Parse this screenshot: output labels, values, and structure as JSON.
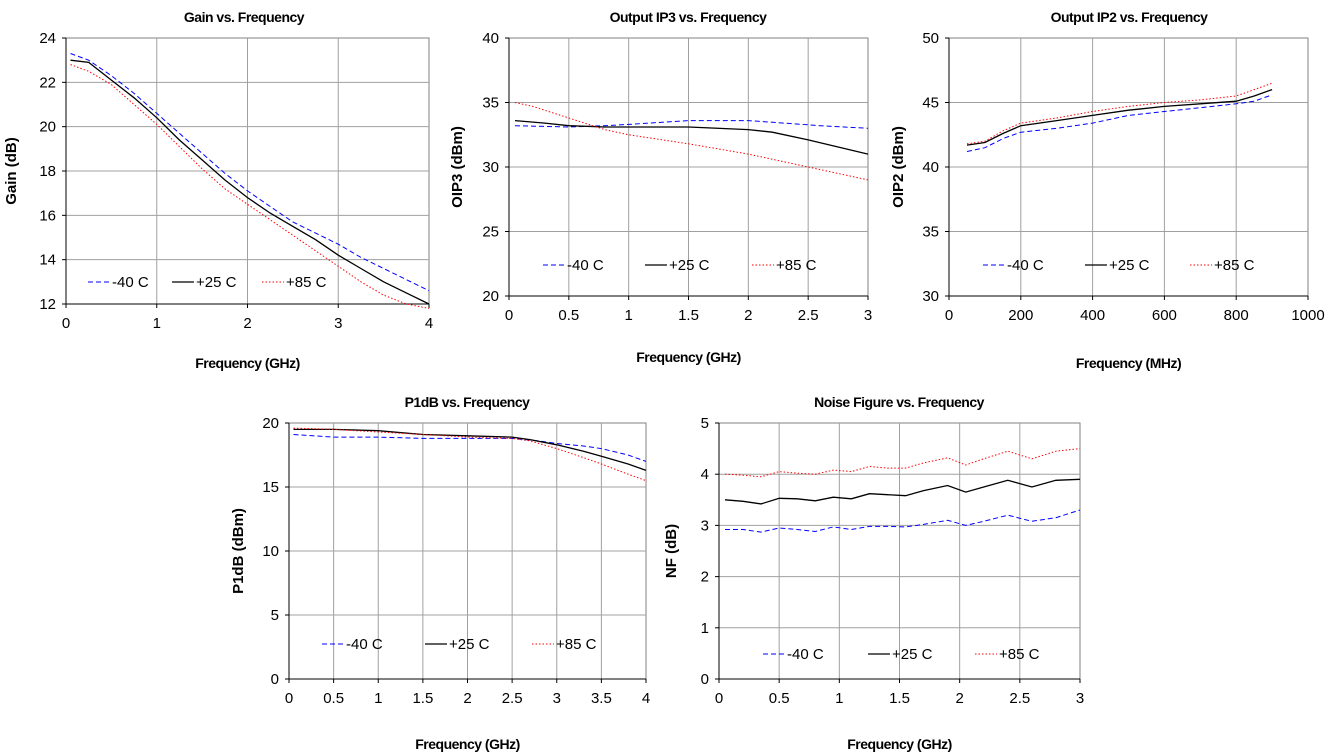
{
  "chart_data": [
    {
      "id": "gain",
      "type": "line",
      "title": "Gain vs. Frequency",
      "xlabel": "Frequency (GHz)",
      "ylabel": "Gain (dB)",
      "xlim": [
        0,
        4
      ],
      "ylim": [
        12,
        24
      ],
      "xticks": [
        0,
        1,
        2,
        3,
        4
      ],
      "xtick_labels": [
        "0",
        "1",
        "2",
        "3",
        "4"
      ],
      "yticks": [
        12,
        14,
        16,
        18,
        20,
        22,
        24
      ],
      "ytick_labels": [
        "12",
        "14",
        "16",
        "18",
        "20",
        "22",
        "24"
      ],
      "grid": true,
      "legend_position": "bottom",
      "series": [
        {
          "name": "-40 C",
          "color": "#0000ff",
          "dash": "dashed",
          "x": [
            0.05,
            0.25,
            0.5,
            0.75,
            1.0,
            1.25,
            1.5,
            1.75,
            2.0,
            2.25,
            2.5,
            2.75,
            3.0,
            3.25,
            3.5,
            3.75,
            4.0
          ],
          "y": [
            23.3,
            23.0,
            22.3,
            21.5,
            20.6,
            19.7,
            18.8,
            17.9,
            17.1,
            16.4,
            15.7,
            15.2,
            14.7,
            14.1,
            13.6,
            13.1,
            12.6
          ]
        },
        {
          "name": "+25 C",
          "color": "#000000",
          "dash": "solid",
          "x": [
            0.05,
            0.25,
            0.5,
            0.75,
            1.0,
            1.25,
            1.5,
            1.75,
            2.0,
            2.25,
            2.5,
            2.75,
            3.0,
            3.25,
            3.5,
            3.75,
            4.0
          ],
          "y": [
            23.0,
            22.9,
            22.1,
            21.3,
            20.4,
            19.4,
            18.5,
            17.6,
            16.8,
            16.1,
            15.5,
            14.9,
            14.2,
            13.6,
            13.0,
            12.5,
            12.0
          ]
        },
        {
          "name": "+85 C",
          "color": "#ff0000",
          "dash": "dotted",
          "x": [
            0.05,
            0.25,
            0.5,
            0.75,
            1.0,
            1.25,
            1.5,
            1.75,
            2.0,
            2.25,
            2.5,
            2.75,
            3.0,
            3.25,
            3.5,
            3.75,
            4.0
          ],
          "y": [
            22.8,
            22.5,
            21.9,
            21.0,
            20.1,
            19.1,
            18.1,
            17.2,
            16.5,
            15.8,
            15.1,
            14.4,
            13.7,
            13.0,
            12.4,
            12.0,
            11.8
          ]
        }
      ]
    },
    {
      "id": "oip3",
      "type": "line",
      "title": "Output IP3 vs. Frequency",
      "xlabel": "Frequency (GHz)",
      "ylabel": "OIP3 (dBm)",
      "xlim": [
        0,
        3
      ],
      "ylim": [
        20,
        40
      ],
      "xticks": [
        0,
        0.5,
        1,
        1.5,
        2,
        2.5,
        3
      ],
      "xtick_labels": [
        "0",
        "0.5",
        "1",
        "1.5",
        "2",
        "2.5",
        "3"
      ],
      "yticks": [
        20,
        25,
        30,
        35,
        40
      ],
      "ytick_labels": [
        "20",
        "25",
        "30",
        "35",
        "40"
      ],
      "grid": true,
      "legend_position": "bottom",
      "series": [
        {
          "name": "-40 C",
          "color": "#0000ff",
          "dash": "dashed",
          "x": [
            0.05,
            0.5,
            0.8,
            1.0,
            1.5,
            2.0,
            2.3,
            2.6,
            3.0
          ],
          "y": [
            33.2,
            33.1,
            33.2,
            33.3,
            33.6,
            33.6,
            33.4,
            33.2,
            33.0
          ]
        },
        {
          "name": "+25 C",
          "color": "#000000",
          "dash": "solid",
          "x": [
            0.05,
            0.3,
            0.5,
            0.8,
            1.0,
            1.5,
            2.0,
            2.2,
            2.5,
            3.0
          ],
          "y": [
            33.6,
            33.4,
            33.2,
            33.1,
            33.1,
            33.1,
            32.9,
            32.7,
            32.1,
            31.0
          ]
        },
        {
          "name": "+85 C",
          "color": "#ff0000",
          "dash": "dotted",
          "x": [
            0.05,
            0.2,
            0.5,
            0.8,
            1.0,
            1.5,
            2.0,
            2.5,
            3.0
          ],
          "y": [
            35.0,
            34.7,
            33.8,
            32.9,
            32.5,
            31.8,
            31.0,
            30.0,
            29.0
          ]
        }
      ]
    },
    {
      "id": "oip2",
      "type": "line",
      "title": "Output IP2 vs. Frequency",
      "xlabel": "Frequency (MHz)",
      "ylabel": "OIP2 (dBm)",
      "xlim": [
        0,
        1000
      ],
      "ylim": [
        30,
        50
      ],
      "xticks": [
        0,
        200,
        400,
        600,
        800,
        1000
      ],
      "xtick_labels": [
        "0",
        "200",
        "400",
        "600",
        "800",
        "1000"
      ],
      "yticks": [
        30,
        35,
        40,
        45,
        50
      ],
      "ytick_labels": [
        "30",
        "35",
        "40",
        "45",
        "50"
      ],
      "grid": true,
      "legend_position": "bottom",
      "series": [
        {
          "name": "-40 C",
          "color": "#0000ff",
          "dash": "dashed",
          "x": [
            50,
            100,
            150,
            200,
            300,
            400,
            500,
            600,
            700,
            800,
            850,
            900
          ],
          "y": [
            41.2,
            41.5,
            42.2,
            42.7,
            43.0,
            43.4,
            44.0,
            44.3,
            44.6,
            44.9,
            45.1,
            45.6
          ]
        },
        {
          "name": "+25 C",
          "color": "#000000",
          "dash": "solid",
          "x": [
            50,
            100,
            150,
            200,
            300,
            400,
            500,
            600,
            700,
            800,
            850,
            900
          ],
          "y": [
            41.7,
            41.9,
            42.6,
            43.2,
            43.6,
            44.0,
            44.4,
            44.7,
            44.9,
            45.1,
            45.5,
            46.0
          ]
        },
        {
          "name": "+85 C",
          "color": "#ff0000",
          "dash": "dotted",
          "x": [
            50,
            100,
            150,
            200,
            300,
            400,
            500,
            600,
            700,
            800,
            850,
            900
          ],
          "y": [
            41.8,
            42.0,
            42.8,
            43.4,
            43.8,
            44.3,
            44.7,
            45.0,
            45.2,
            45.5,
            46.0,
            46.5
          ]
        }
      ]
    },
    {
      "id": "p1db",
      "type": "line",
      "title": "P1dB vs. Frequency",
      "xlabel": "Frequency (GHz)",
      "ylabel": "P1dB (dBm)",
      "xlim": [
        0,
        4
      ],
      "ylim": [
        0,
        20
      ],
      "xticks": [
        0,
        0.5,
        1,
        1.5,
        2,
        2.5,
        3,
        3.5,
        4
      ],
      "xtick_labels": [
        "0",
        "0.5",
        "1",
        "1.5",
        "2",
        "2.5",
        "3",
        "3.5",
        "4"
      ],
      "yticks": [
        0,
        5,
        10,
        15,
        20
      ],
      "ytick_labels": [
        "0",
        "5",
        "10",
        "15",
        "20"
      ],
      "grid": true,
      "legend_position": "bottom",
      "series": [
        {
          "name": "-40 C",
          "color": "#0000ff",
          "dash": "dashed",
          "x": [
            0.05,
            0.5,
            1.0,
            1.5,
            2.0,
            2.5,
            2.8,
            3.0,
            3.3,
            3.5,
            3.8,
            4.0
          ],
          "y": [
            19.1,
            18.9,
            18.9,
            18.8,
            18.8,
            18.8,
            18.6,
            18.4,
            18.2,
            18.0,
            17.5,
            17.0
          ]
        },
        {
          "name": "+25 C",
          "color": "#000000",
          "dash": "solid",
          "x": [
            0.05,
            0.5,
            1.0,
            1.5,
            2.0,
            2.5,
            2.7,
            3.0,
            3.3,
            3.5,
            3.8,
            4.0
          ],
          "y": [
            19.5,
            19.5,
            19.4,
            19.1,
            19.0,
            18.9,
            18.7,
            18.3,
            17.8,
            17.4,
            16.8,
            16.3
          ]
        },
        {
          "name": "+85 C",
          "color": "#ff0000",
          "dash": "dotted",
          "x": [
            0.05,
            0.5,
            1.0,
            1.5,
            2.0,
            2.5,
            2.7,
            3.0,
            3.3,
            3.5,
            3.8,
            4.0
          ],
          "y": [
            19.6,
            19.5,
            19.3,
            19.1,
            18.9,
            18.8,
            18.6,
            18.0,
            17.3,
            16.8,
            16.0,
            15.5
          ]
        }
      ]
    },
    {
      "id": "nf",
      "type": "line",
      "title": "Noise Figure vs. Frequency",
      "xlabel": "Frequency (GHz)",
      "ylabel": "NF (dB)",
      "xlim": [
        0,
        3
      ],
      "ylim": [
        0,
        5
      ],
      "xticks": [
        0,
        0.5,
        1,
        1.5,
        2,
        2.5,
        3
      ],
      "xtick_labels": [
        "0",
        "0.5",
        "1",
        "1.5",
        "2",
        "2.5",
        "3"
      ],
      "yticks": [
        0,
        1,
        2,
        3,
        4,
        5
      ],
      "ytick_labels": [
        "0",
        "1",
        "2",
        "3",
        "4",
        "5"
      ],
      "grid": true,
      "legend_position": "bottom",
      "series": [
        {
          "name": "-40 C",
          "color": "#0000ff",
          "dash": "dashed",
          "x": [
            0.05,
            0.2,
            0.35,
            0.5,
            0.65,
            0.8,
            0.95,
            1.1,
            1.25,
            1.4,
            1.55,
            1.7,
            1.9,
            2.05,
            2.2,
            2.4,
            2.6,
            2.8,
            3.0
          ],
          "y": [
            2.92,
            2.92,
            2.87,
            2.95,
            2.92,
            2.88,
            2.97,
            2.92,
            2.98,
            2.98,
            2.97,
            3.02,
            3.1,
            3.0,
            3.08,
            3.2,
            3.08,
            3.15,
            3.3
          ]
        },
        {
          "name": "+25 C",
          "color": "#000000",
          "dash": "solid",
          "x": [
            0.05,
            0.2,
            0.35,
            0.5,
            0.65,
            0.8,
            0.95,
            1.1,
            1.25,
            1.4,
            1.55,
            1.7,
            1.9,
            2.05,
            2.2,
            2.4,
            2.6,
            2.8,
            3.0
          ],
          "y": [
            3.5,
            3.47,
            3.42,
            3.53,
            3.52,
            3.48,
            3.55,
            3.52,
            3.62,
            3.6,
            3.58,
            3.68,
            3.78,
            3.65,
            3.75,
            3.88,
            3.75,
            3.88,
            3.9
          ]
        },
        {
          "name": "+85 C",
          "color": "#ff0000",
          "dash": "dotted",
          "x": [
            0.05,
            0.2,
            0.35,
            0.5,
            0.65,
            0.8,
            0.95,
            1.1,
            1.25,
            1.4,
            1.55,
            1.7,
            1.9,
            2.05,
            2.2,
            2.4,
            2.6,
            2.8,
            3.0
          ],
          "y": [
            4.0,
            3.98,
            3.95,
            4.05,
            4.02,
            4.0,
            4.08,
            4.05,
            4.15,
            4.12,
            4.12,
            4.22,
            4.32,
            4.18,
            4.3,
            4.45,
            4.3,
            4.45,
            4.5
          ]
        }
      ]
    }
  ]
}
